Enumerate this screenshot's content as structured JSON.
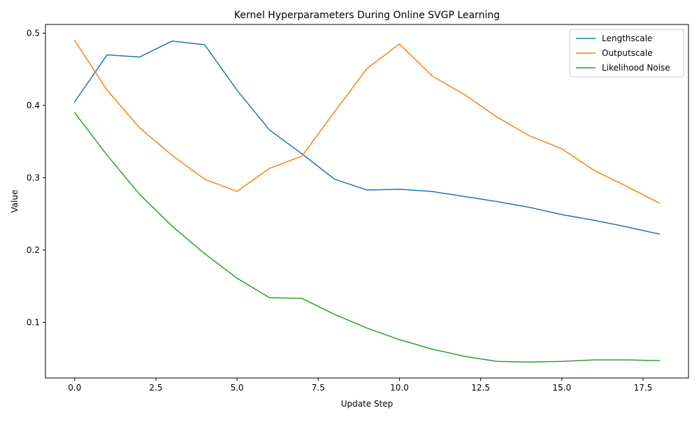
{
  "chart_data": {
    "type": "line",
    "title": "Kernel Hyperparameters During Online SVGP Learning",
    "xlabel": "Update Step",
    "ylabel": "Value",
    "xlim": [
      -0.9,
      18.9
    ],
    "ylim": [
      0.023,
      0.512
    ],
    "xticks": [
      0.0,
      2.5,
      5.0,
      7.5,
      10.0,
      12.5,
      15.0,
      17.5
    ],
    "xtick_labels": [
      "0.0",
      "2.5",
      "5.0",
      "7.5",
      "10.0",
      "12.5",
      "15.0",
      "17.5"
    ],
    "yticks": [
      0.1,
      0.2,
      0.3,
      0.4,
      0.5
    ],
    "ytick_labels": [
      "0.1",
      "0.2",
      "0.3",
      "0.4",
      "0.5"
    ],
    "grid": false,
    "legend_position": "top-right",
    "x": [
      0,
      1,
      2,
      3,
      4,
      5,
      6,
      7,
      8,
      9,
      10,
      11,
      12,
      13,
      14,
      15,
      16,
      17,
      18
    ],
    "series": [
      {
        "name": "Lengthscale",
        "color": "#1f77b4",
        "values": [
          0.405,
          0.47,
          0.467,
          0.489,
          0.484,
          0.421,
          0.366,
          0.333,
          0.298,
          0.283,
          0.284,
          0.281,
          0.274,
          0.267,
          0.259,
          0.249,
          0.241,
          0.232,
          0.222
        ]
      },
      {
        "name": "Outputscale",
        "color": "#ff7f0e",
        "values": [
          0.49,
          0.421,
          0.369,
          0.331,
          0.298,
          0.281,
          0.313,
          0.33,
          0.391,
          0.451,
          0.485,
          0.441,
          0.415,
          0.384,
          0.358,
          0.34,
          0.31,
          0.288,
          0.265
        ]
      },
      {
        "name": "Likelihood Noise",
        "color": "#2ca02c",
        "values": [
          0.39,
          0.331,
          0.277,
          0.233,
          0.195,
          0.161,
          0.134,
          0.133,
          0.111,
          0.092,
          0.076,
          0.063,
          0.053,
          0.046,
          0.045,
          0.046,
          0.048,
          0.048,
          0.047
        ]
      }
    ]
  }
}
